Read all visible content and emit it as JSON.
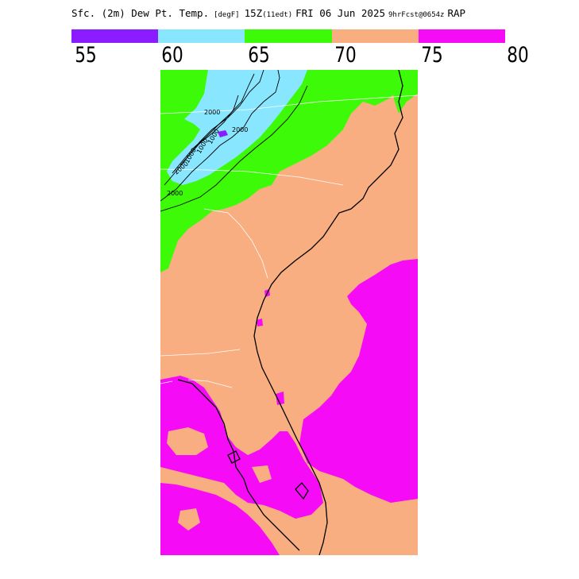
{
  "title": {
    "field": "Sfc. (2m) Dew Pt. Temp.",
    "units": "[degF]",
    "valid_time": "15Z",
    "local_time": "(11edt)",
    "date": "FRI 06 Jun 2025",
    "forecast_info": "9hrFcst@0654z",
    "model": "RAP"
  },
  "legend": {
    "colors": [
      "#8a1cff",
      "#88e6ff",
      "#3cfa08",
      "#f8ae80",
      "#f50bf6"
    ],
    "labels": [
      "55",
      "60",
      "65",
      "70",
      "75",
      "80"
    ]
  },
  "map": {
    "region": "Southeastern United States",
    "fill_colors": {
      "d60_65": "#88e6ff",
      "d65_70": "#3cfa08",
      "d70_75": "#f8ae80",
      "d75_80": "#f50bf6",
      "d55_60": "#8a1cff"
    },
    "contour_labels": [
      "2000",
      "2000",
      "2000",
      "2000",
      "1000",
      "1000",
      "1000"
    ],
    "boundary_color": "#ffffff",
    "coastline_color": "#000000"
  }
}
